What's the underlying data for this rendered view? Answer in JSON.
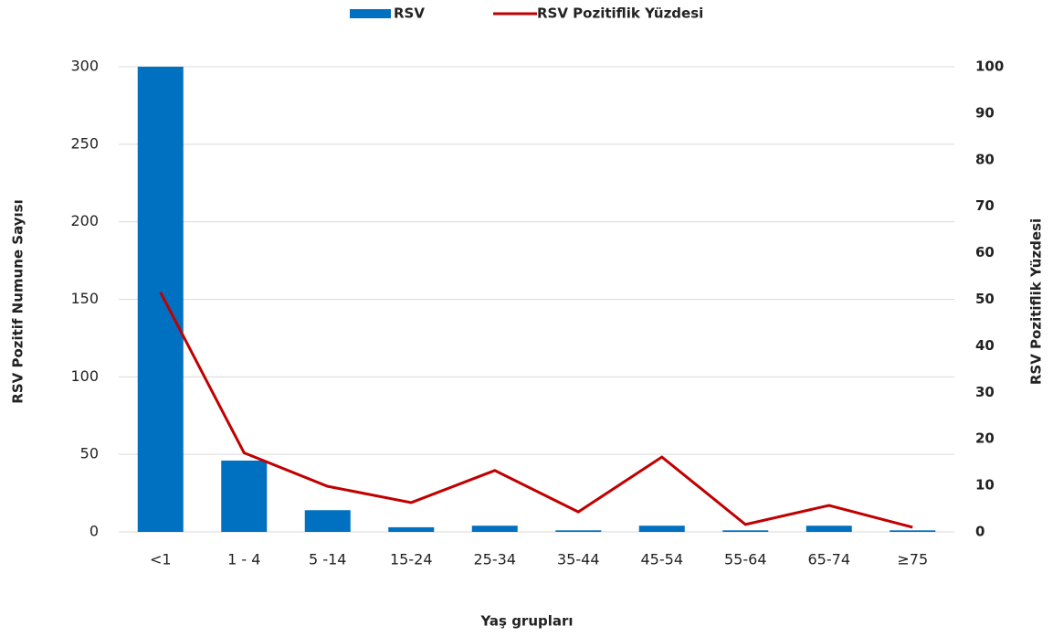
{
  "chart_data": {
    "type": "bar",
    "x_label": "Yaş grupları",
    "y_label": "RSV  Pozitif Numune Sayısı",
    "y2_label": "RSV Pozitiflik Yüzdesi",
    "categories": [
      "<1",
      "1 - 4",
      "5 -14",
      "15-24",
      "25-34",
      "35-44",
      "45-54",
      "55-64",
      "65-74",
      "≥75"
    ],
    "series": [
      {
        "name": "RSV",
        "type": "bar",
        "color": "#0070c0",
        "values": [
          300,
          46,
          14,
          3,
          4,
          1,
          4,
          1,
          4,
          1
        ]
      },
      {
        "name": "RSV Pozitiflik Yüzdesi",
        "type": "line",
        "axis": "y2",
        "color": "#c00000",
        "values": [
          51.5,
          17,
          9.8,
          6.3,
          13.2,
          4.3,
          16.1,
          1.6,
          5.7,
          1
        ]
      }
    ],
    "ylim": [
      0,
      300
    ],
    "yticks": [
      0,
      50,
      100,
      150,
      200,
      250,
      300
    ],
    "y2lim": [
      0,
      100
    ],
    "y2ticks": [
      0,
      10,
      20,
      30,
      40,
      50,
      60,
      70,
      80,
      90,
      100
    ],
    "grid": true,
    "legend": "top"
  }
}
